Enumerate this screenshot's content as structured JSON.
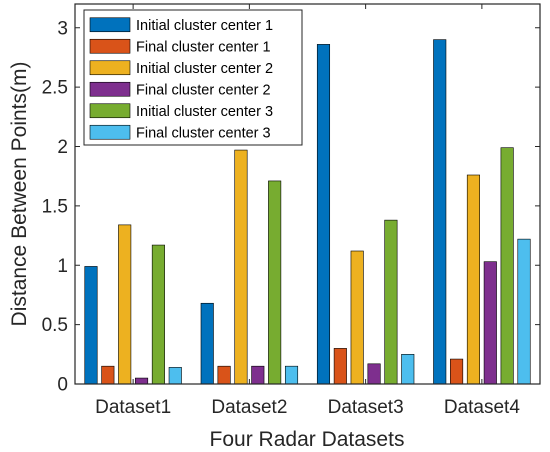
{
  "chart_data": {
    "type": "bar",
    "title": "",
    "xlabel": "Four Radar Datasets",
    "ylabel": "Distance Between Points(m)",
    "ylim": [
      0,
      3.2
    ],
    "yticks": [
      0,
      0.5,
      1,
      1.5,
      2,
      2.5,
      3
    ],
    "ytick_labels": [
      "0",
      "0.5",
      "1",
      "1.5",
      "2",
      "2.5",
      "3"
    ],
    "categories": [
      "Dataset1",
      "Dataset2",
      "Dataset3",
      "Dataset4"
    ],
    "legend_position": "top-left",
    "grid": false,
    "series": [
      {
        "name": "Initial cluster center 1",
        "color": "#0072BD",
        "values": [
          0.99,
          0.68,
          2.86,
          2.9
        ]
      },
      {
        "name": "Final cluster center 1",
        "color": "#D95319",
        "values": [
          0.15,
          0.15,
          0.3,
          0.21
        ]
      },
      {
        "name": "Initial cluster center 2",
        "color": "#EDB120",
        "values": [
          1.34,
          1.97,
          1.12,
          1.76
        ]
      },
      {
        "name": "Final cluster center 2",
        "color": "#7E2F8E",
        "values": [
          0.05,
          0.15,
          0.17,
          1.03
        ]
      },
      {
        "name": "Initial cluster center 3",
        "color": "#77AC30",
        "values": [
          1.17,
          1.71,
          1.38,
          1.99
        ]
      },
      {
        "name": "Final cluster center 3",
        "color": "#4DBEEE",
        "values": [
          0.14,
          0.15,
          0.25,
          1.22
        ]
      }
    ]
  }
}
